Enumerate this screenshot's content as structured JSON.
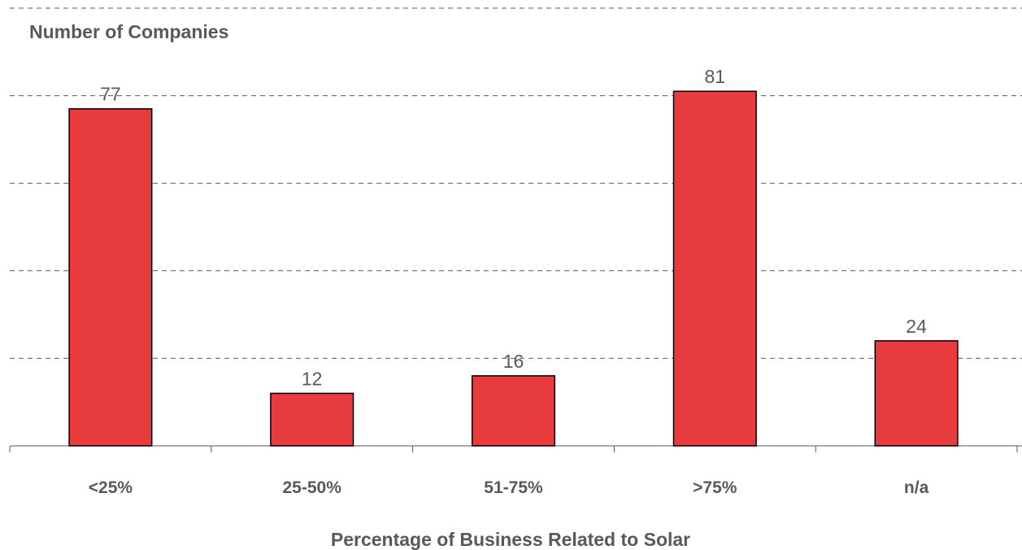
{
  "chart_data": {
    "type": "bar",
    "ylabel": "Number of Companies",
    "xlabel": "Percentage of Business Related to Solar",
    "categories": [
      "<25%",
      "25-50%",
      "51-75%",
      ">75%",
      "n/a"
    ],
    "values": [
      77,
      12,
      16,
      81,
      24
    ],
    "ylim": [
      0,
      100
    ],
    "grid": true,
    "bar_color": "#E83B3E",
    "text_color": "#595959",
    "legend": "none"
  }
}
